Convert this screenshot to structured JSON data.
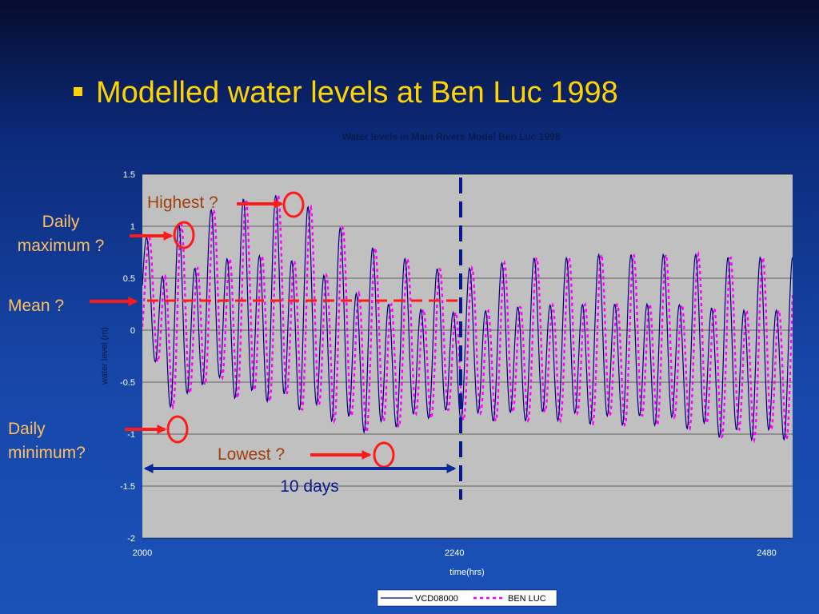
{
  "slide": {
    "title": "Modelled water levels at Ben Luc 1998"
  },
  "annotations": {
    "highest": "Highest ?",
    "daily_maximum_line1": "Daily",
    "daily_maximum_line2": "maximum ?",
    "mean": "Mean ?",
    "daily_minimum_line1": "Daily",
    "daily_minimum_line2": "minimum?",
    "lowest": "Lowest ?",
    "span": "10 days"
  },
  "colors": {
    "slide_title": "#ffd400",
    "plot_bg": "#c0c0c0",
    "series_vcd": "#00007a",
    "series_benluc": "#ff00ff",
    "annotation_text": "#a0400f",
    "annotation_left": "#ffc060",
    "arrow_red": "#ff1a1a",
    "span_arrow": "#0a2a9a",
    "vertical_dash": "#0a1a8a",
    "mean_dash": "#ff1a1a"
  },
  "chart_data": {
    "type": "line",
    "title": "Water levels in Main Rivers Model Ben Luc 1998",
    "xlabel": "time(hrs)",
    "ylabel": "water level (m)",
    "xlim": [
      2000,
      2500
    ],
    "ylim": [
      -2,
      1.5
    ],
    "xticks": [
      2000,
      2240,
      2480
    ],
    "yticks": [
      1.5,
      1,
      0.5,
      0,
      -0.5,
      -1,
      -1.5,
      -2
    ],
    "ytick_labels": [
      "1.5",
      "1",
      "0.5",
      "0",
      "-0.5",
      "-1",
      "-1.5",
      "-2"
    ],
    "grid": true,
    "legend": "bottom",
    "series": [
      {
        "name": "VCD08000",
        "style": "solid",
        "cycle_hours": 12.42,
        "daily_peaks": [
          {
            "day_start": 2000,
            "max": 0.85,
            "min": -0.15
          },
          {
            "day_start": 2025,
            "max": 0.95,
            "min": -1.0
          },
          {
            "day_start": 2050,
            "max": 1.1,
            "min": -0.6
          },
          {
            "day_start": 2075,
            "max": 1.2,
            "min": -0.85
          },
          {
            "day_start": 2100,
            "max": 1.25,
            "min": -0.85
          },
          {
            "day_start": 2125,
            "max": 1.15,
            "min": -0.95
          },
          {
            "day_start": 2150,
            "max": 0.95,
            "min": -1.05
          },
          {
            "day_start": 2175,
            "max": 0.75,
            "min": -1.15
          },
          {
            "day_start": 2200,
            "max": 0.65,
            "min": -1.05
          },
          {
            "day_start": 2225,
            "max": 0.55,
            "min": -0.95
          },
          {
            "day_start": 2250,
            "max": 0.55,
            "min": -1.0
          },
          {
            "day_start": 2275,
            "max": 0.6,
            "min": -1.0
          },
          {
            "day_start": 2300,
            "max": 0.65,
            "min": -1.0
          },
          {
            "day_start": 2325,
            "max": 0.65,
            "min": -1.0
          },
          {
            "day_start": 2350,
            "max": 0.68,
            "min": -1.05
          },
          {
            "day_start": 2375,
            "max": 0.68,
            "min": -1.05
          },
          {
            "day_start": 2400,
            "max": 0.68,
            "min": -1.05
          },
          {
            "day_start": 2425,
            "max": 0.68,
            "min": -1.1
          },
          {
            "day_start": 2450,
            "max": 0.65,
            "min": -1.2
          },
          {
            "day_start": 2475,
            "max": 0.65,
            "min": -1.2
          }
        ]
      },
      {
        "name": "BEN LUC",
        "style": "dashed",
        "lag_hours": 2
      }
    ]
  }
}
